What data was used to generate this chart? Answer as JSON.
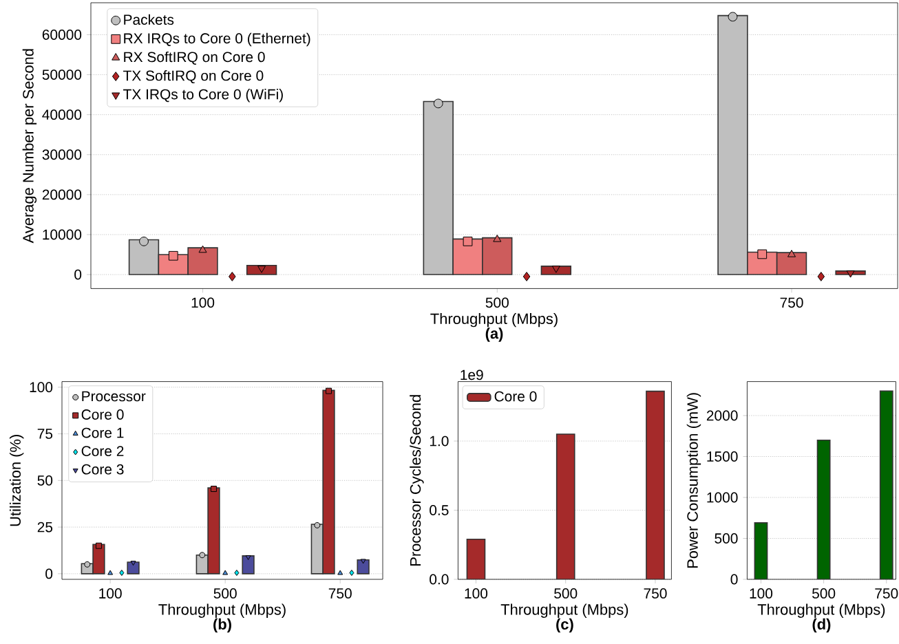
{
  "chart_data": [
    {
      "type": "bar",
      "title": "(a)",
      "xlabel": "Throughput (Mbps)",
      "ylabel": "Average Number per Second",
      "categories": [
        "100",
        "500",
        "750"
      ],
      "ylim": [
        -3500,
        68000
      ],
      "yticks": [
        0,
        10000,
        20000,
        30000,
        40000,
        50000,
        60000
      ],
      "grid": "y",
      "legend": "top left",
      "series": [
        {
          "color": "#bfbfbf",
          "values": [
            8700,
            43300,
            64800
          ]
        },
        {
          "type": "scatter",
          "name": "Packets",
          "color": "#bfbfbf",
          "marker": "circle",
          "x": [
            "100",
            "500",
            "750"
          ],
          "values": [
            8300,
            42800,
            64500
          ]
        },
        {
          "color": "#f08080",
          "values": [
            5000,
            8900,
            5600
          ]
        },
        {
          "type": "scatter",
          "name": "RX IRQs to Core 0 (Ethernet)",
          "color": "#f08080",
          "marker": "square",
          "x": [
            "100",
            "500",
            "750"
          ],
          "values": [
            4700,
            8300,
            5100
          ]
        },
        {
          "color": "#cd5c5c",
          "values": [
            6700,
            9200,
            5500
          ]
        },
        {
          "type": "scatter",
          "name": "RX SoftIRQ on Core 0",
          "color": "#cd5c5c",
          "marker": "triangle",
          "x": [
            "100",
            "500",
            "750"
          ],
          "values": [
            6100,
            8800,
            5000
          ]
        },
        {
          "type": "scatter",
          "name": "TX SoftIRQ on Core 0",
          "color": "#b22222",
          "marker": "diamond",
          "x": [
            "100",
            "500",
            "750"
          ],
          "values": [
            -500,
            -500,
            -500
          ]
        },
        {
          "color": "#a52a2a",
          "values": [
            2300,
            2100,
            900
          ]
        },
        {
          "type": "scatter",
          "name": "TX IRQs to Core 0 (WiFi)",
          "color": "#a52a2a",
          "marker": "triangle down",
          "x": [
            "100",
            "500",
            "750"
          ],
          "values": [
            1600,
            1600,
            400
          ]
        }
      ]
    },
    {
      "type": "bar",
      "title": "(b)",
      "xlabel": "Throughput (Mbps)",
      "ylabel": "Utilization (%)",
      "categories": [
        "100",
        "500",
        "750"
      ],
      "ylim": [
        -3,
        103
      ],
      "yticks": [
        0,
        25,
        50,
        75,
        100
      ],
      "grid": "y",
      "legend": "top left",
      "series": [
        {
          "color": "#bfbfbf",
          "values": [
            5.4,
            10,
            26.5
          ]
        },
        {
          "type": "scatter",
          "name": "Processor",
          "color": "#bfbfbf",
          "marker": "circle",
          "x": [
            "100",
            "500",
            "750"
          ],
          "values": [
            5,
            10,
            26
          ]
        },
        {
          "color": "#a52a2a",
          "values": [
            15.7,
            46,
            98.3
          ]
        },
        {
          "type": "scatter",
          "name": "Core 0",
          "color": "#a52a2a",
          "marker": "square",
          "x": [
            "100",
            "500",
            "750"
          ],
          "values": [
            15,
            45.5,
            98
          ]
        },
        {
          "type": "scatter",
          "name": "Core 1",
          "color": "#4f8fd9",
          "marker": "triangle",
          "x": [
            "100",
            "500",
            "750"
          ],
          "values": [
            0.3,
            0.3,
            0.3
          ]
        },
        {
          "type": "scatter",
          "name": "Core 2",
          "color": "#00e5ee",
          "marker": "diamond",
          "x": [
            "100",
            "500",
            "750"
          ],
          "values": [
            0.5,
            0.5,
            0.5
          ]
        },
        {
          "color": "#4c4c9c",
          "values": [
            6.2,
            9.6,
            7.4
          ]
        },
        {
          "type": "scatter",
          "name": "Core 3",
          "color": "#4c4c9c",
          "marker": "triangle down",
          "x": [
            "100",
            "500",
            "750"
          ],
          "values": [
            6,
            9,
            7
          ]
        }
      ]
    },
    {
      "type": "bar",
      "title": "(c)",
      "xlabel": "Throughput (Mbps)",
      "ylabel": "Processor Cycles/Second",
      "annotations": [
        "1e9"
      ],
      "categories": [
        "100",
        "500",
        "750"
      ],
      "ylim": [
        0,
        1.43
      ],
      "yticks": [
        {
          "value": 0,
          "label": "0.0"
        },
        0.5,
        {
          "value": 1,
          "label": "1.0"
        }
      ],
      "grid": "y",
      "legend": "top left",
      "series": [
        {
          "name": "Core 0",
          "color": "#a52a2a",
          "values": [
            0.29,
            1.05,
            1.36
          ]
        }
      ]
    },
    {
      "type": "bar",
      "title": "(d)",
      "xlabel": "Throughput (Mbps)",
      "ylabel": "Power Consumption (mW)",
      "categories": [
        "100",
        "500",
        "750"
      ],
      "ylim": [
        0,
        2415
      ],
      "yticks": [
        0,
        500,
        1000,
        1500,
        2000
      ],
      "grid": "y",
      "color": "#006400",
      "values": [
        690,
        1700,
        2300
      ]
    }
  ]
}
